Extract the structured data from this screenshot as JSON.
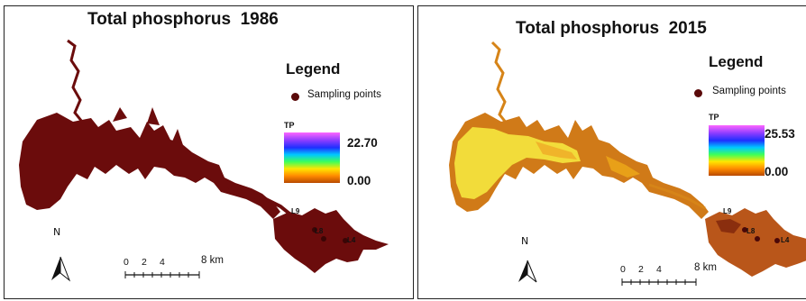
{
  "panels": [
    {
      "title": "Total phosphorus  1986",
      "legend": {
        "title": "Legend",
        "sampling_label": "Sampling points",
        "variable": "TP",
        "max": "22.70",
        "min": "0.00"
      },
      "sites": [
        "L9",
        "L8",
        "L4"
      ],
      "scale": {
        "ticks": [
          "0",
          "2",
          "4"
        ],
        "unit": "8 km"
      },
      "north": "N"
    },
    {
      "title": "Total phosphorus  2015",
      "legend": {
        "title": "Legend",
        "sampling_label": "Sampling points",
        "variable": "TP",
        "max": "25.53",
        "min": "0.00"
      },
      "sites": [
        "L9",
        "L8",
        "L4"
      ],
      "scale": {
        "ticks": [
          "0",
          "2",
          "4"
        ],
        "unit": "8 km"
      },
      "north": "N"
    }
  ],
  "colors": {
    "water_1986": "#6b0c0c",
    "water_2015_high": "#c85a14",
    "water_2015_mid": "#e8a018",
    "water_2015_low": "#f5e23a",
    "sampling_point": "#5a0a0a"
  }
}
